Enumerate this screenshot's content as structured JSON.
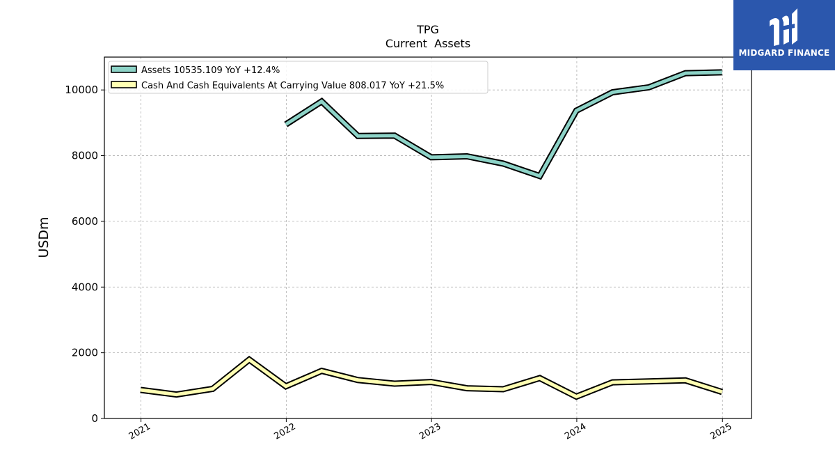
{
  "brand": {
    "name": "MIDGARD FINANCE",
    "color": "#2b57ad"
  },
  "chart_data": {
    "type": "line",
    "title": "TPG",
    "subtitle": "Current  Assets",
    "xlabel": "",
    "ylabel": "USDm",
    "xlim": [
      "2020-10-01",
      "2025-03-15"
    ],
    "ylim": [
      0,
      11000
    ],
    "x_ticks": [
      "2021",
      "2022",
      "2023",
      "2024",
      "2025"
    ],
    "y_ticks": [
      0,
      2000,
      4000,
      6000,
      8000,
      10000
    ],
    "y_tick_labels": [
      "0",
      "2000",
      "4000",
      "6000",
      "8000",
      "10000"
    ],
    "grid": true,
    "legend_position": "top-left",
    "series": [
      {
        "name": "Assets  10535.109 YoY +12.4%",
        "color": "#8dd3c7",
        "x": [
          "2021-12-31",
          "2022-03-31",
          "2022-06-30",
          "2022-09-30",
          "2022-12-31",
          "2023-03-31",
          "2023-06-30",
          "2023-09-30",
          "2023-12-31",
          "2024-03-31",
          "2024-06-30",
          "2024-09-30",
          "2024-12-31"
        ],
        "values": [
          8950,
          9650,
          8600,
          8610,
          7950,
          7980,
          7760,
          7380,
          9370,
          9930,
          10080,
          10510,
          10535
        ]
      },
      {
        "name": "Cash And Cash Equivalents At Carrying Value  808.017 YoY +21.5%",
        "color": "#ffffb3",
        "x": [
          "2020-12-31",
          "2021-03-31",
          "2021-06-30",
          "2021-09-30",
          "2021-12-31",
          "2022-03-31",
          "2022-06-30",
          "2022-09-30",
          "2022-12-31",
          "2023-03-31",
          "2023-06-30",
          "2023-09-30",
          "2023-12-31",
          "2024-03-31",
          "2024-06-30",
          "2024-09-30",
          "2024-12-31"
        ],
        "values": [
          870,
          730,
          900,
          1790,
          980,
          1450,
          1170,
          1060,
          1110,
          920,
          890,
          1230,
          665,
          1100,
          1130,
          1160,
          808
        ]
      }
    ]
  }
}
